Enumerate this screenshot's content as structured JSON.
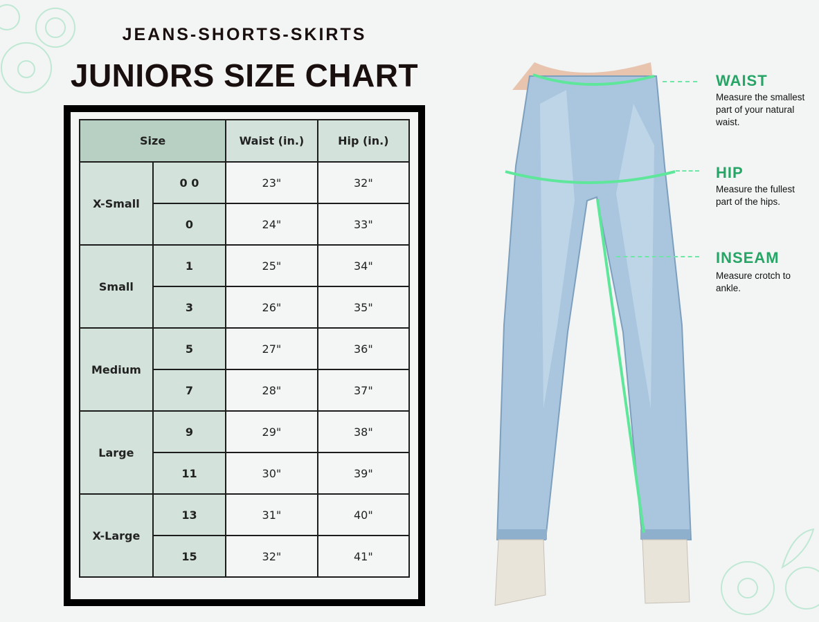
{
  "header": {
    "subtitle": "JEANS-SHORTS-SKIRTS",
    "title": "JUNIORS SIZE CHART"
  },
  "table": {
    "headers": {
      "size": "Size",
      "waist": "Waist (in.)",
      "hip": "Hip (in.)"
    },
    "groups": [
      {
        "name": "X-Small",
        "rows": [
          {
            "size": "0 0",
            "waist": "23\"",
            "hip": "32\""
          },
          {
            "size": "0",
            "waist": "24\"",
            "hip": "33\""
          }
        ]
      },
      {
        "name": "Small",
        "rows": [
          {
            "size": "1",
            "waist": "25\"",
            "hip": "34\""
          },
          {
            "size": "3",
            "waist": "26\"",
            "hip": "35\""
          }
        ]
      },
      {
        "name": "Medium",
        "rows": [
          {
            "size": "5",
            "waist": "27\"",
            "hip": "36\""
          },
          {
            "size": "7",
            "waist": "28\"",
            "hip": "37\""
          }
        ]
      },
      {
        "name": "Large",
        "rows": [
          {
            "size": "9",
            "waist": "29\"",
            "hip": "38\""
          },
          {
            "size": "11",
            "waist": "30\"",
            "hip": "39\""
          }
        ]
      },
      {
        "name": "X-Large",
        "rows": [
          {
            "size": "13",
            "waist": "31\"",
            "hip": "40\""
          },
          {
            "size": "15",
            "waist": "32\"",
            "hip": "41\""
          }
        ]
      }
    ]
  },
  "measurements": [
    {
      "label": "WAIST",
      "desc": "Measure the smallest part of your natural waist."
    },
    {
      "label": "HIP",
      "desc": "Measure the fullest part of the hips."
    },
    {
      "label": "INSEAM",
      "desc": "Measure crotch to ankle."
    }
  ],
  "colors": {
    "accent": "#27a566",
    "guide": "#6ee7a6",
    "header_cell": "#d3e2db",
    "size_header": "#b7d0c3",
    "denim": "#a9c6de"
  }
}
